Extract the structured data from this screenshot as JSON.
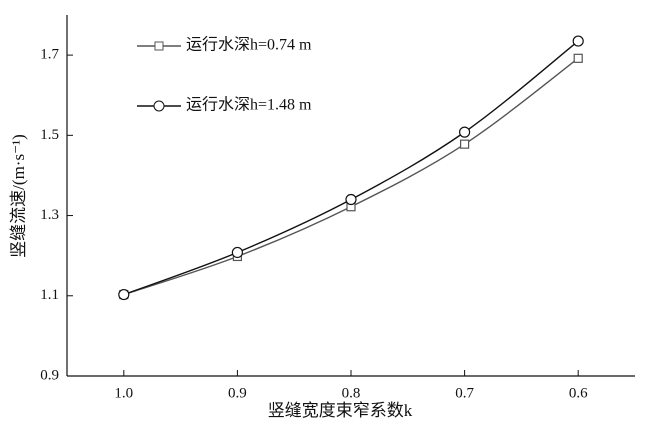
{
  "chart_data": {
    "type": "line",
    "x_label": "竖缝宽度束窄系数k",
    "y_label": "竖缝流速/(m·s⁻¹)",
    "x": [
      1.0,
      0.9,
      0.8,
      0.7,
      0.6
    ],
    "xlim": [
      1.05,
      0.55
    ],
    "xticks": [
      {
        "value": 1.0,
        "label": "1.0"
      },
      0.9,
      0.8,
      0.7,
      0.6
    ],
    "ylim": [
      0.9,
      1.8
    ],
    "yticks": [
      0.9,
      1.1,
      1.3,
      1.5,
      1.7
    ],
    "series": [
      {
        "name": "运行水深h=0.74 m",
        "color": "#555555",
        "marker": "square",
        "values": [
          1.103,
          1.198,
          1.322,
          1.478,
          1.692
        ]
      },
      {
        "name": "运行水深h=1.48 m",
        "color": "#111111",
        "marker": "circle",
        "values": [
          1.103,
          1.208,
          1.34,
          1.508,
          1.735
        ]
      }
    ]
  }
}
